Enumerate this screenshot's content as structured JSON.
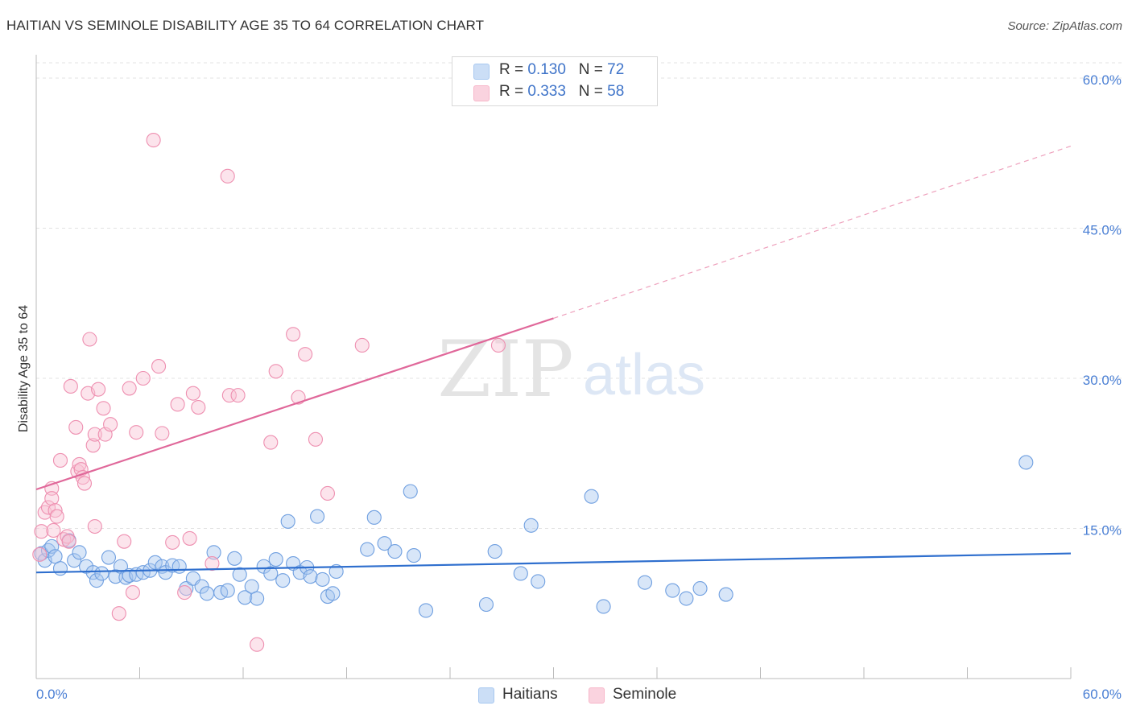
{
  "title": "HAITIAN VS SEMINOLE DISABILITY AGE 35 TO 64 CORRELATION CHART",
  "source": "Source: ZipAtlas.com",
  "watermark": {
    "zip": "ZIP",
    "atlas": "atlas"
  },
  "legend_top": [
    {
      "r_label": "R =",
      "r_value": "0.130",
      "n_label": "N =",
      "n_value": "72",
      "color": "#a8c8f0"
    },
    {
      "r_label": "R =",
      "r_value": "0.333",
      "n_label": "N =",
      "n_value": "58",
      "color": "#f7b6c9"
    }
  ],
  "legend_bottom": [
    {
      "label": "Haitians",
      "color": "#a8c8f0"
    },
    {
      "label": "Seminole",
      "color": "#f7b6c9"
    }
  ],
  "chart_data": {
    "type": "scatter",
    "ylabel": "Disability Age 35 to 64",
    "xlim": [
      0,
      60
    ],
    "ylim": [
      0,
      60
    ],
    "y_ticks": [
      "15.0%",
      "30.0%",
      "45.0%",
      "60.0%"
    ],
    "y_tick_values": [
      15,
      30,
      45,
      60
    ],
    "x_tick_labels": [
      "0.0%",
      "60.0%"
    ],
    "grid": true,
    "colors": {
      "haitians": "#6f9fe0",
      "seminole": "#ee8fb0",
      "haitians_line": "#2f6fce",
      "seminole_line": "#e0689a"
    },
    "series": [
      {
        "name": "Haitians",
        "trend": {
          "x0": 0,
          "y0": 10.6,
          "x1": 60,
          "y1": 12.5
        },
        "points": [
          [
            0.3,
            12.5
          ],
          [
            0.5,
            11.8
          ],
          [
            0.7,
            12.8
          ],
          [
            0.9,
            13.2
          ],
          [
            1.1,
            12.2
          ],
          [
            1.4,
            11.0
          ],
          [
            1.9,
            13.8
          ],
          [
            2.2,
            11.8
          ],
          [
            2.5,
            12.6
          ],
          [
            2.9,
            11.2
          ],
          [
            3.3,
            10.6
          ],
          [
            3.5,
            9.8
          ],
          [
            3.8,
            10.5
          ],
          [
            4.2,
            12.1
          ],
          [
            4.6,
            10.2
          ],
          [
            4.9,
            11.2
          ],
          [
            5.2,
            10.1
          ],
          [
            5.4,
            10.3
          ],
          [
            5.8,
            10.4
          ],
          [
            6.2,
            10.6
          ],
          [
            6.6,
            10.8
          ],
          [
            6.9,
            11.6
          ],
          [
            7.3,
            11.2
          ],
          [
            7.5,
            10.6
          ],
          [
            7.9,
            11.3
          ],
          [
            8.3,
            11.2
          ],
          [
            8.7,
            9.0
          ],
          [
            9.1,
            10.0
          ],
          [
            9.6,
            9.2
          ],
          [
            9.9,
            8.5
          ],
          [
            10.3,
            12.6
          ],
          [
            10.7,
            8.6
          ],
          [
            11.1,
            8.8
          ],
          [
            11.5,
            12.0
          ],
          [
            11.8,
            10.4
          ],
          [
            12.1,
            8.1
          ],
          [
            12.5,
            9.2
          ],
          [
            12.8,
            8.0
          ],
          [
            13.2,
            11.2
          ],
          [
            13.6,
            10.5
          ],
          [
            13.9,
            11.9
          ],
          [
            14.3,
            9.8
          ],
          [
            14.6,
            15.7
          ],
          [
            14.9,
            11.5
          ],
          [
            15.3,
            10.6
          ],
          [
            15.7,
            11.1
          ],
          [
            15.9,
            10.2
          ],
          [
            16.3,
            16.2
          ],
          [
            16.6,
            9.9
          ],
          [
            16.9,
            8.2
          ],
          [
            17.2,
            8.5
          ],
          [
            17.4,
            10.7
          ],
          [
            19.2,
            12.9
          ],
          [
            19.6,
            16.1
          ],
          [
            20.2,
            13.5
          ],
          [
            20.8,
            12.7
          ],
          [
            21.7,
            18.7
          ],
          [
            21.9,
            12.3
          ],
          [
            22.6,
            6.8
          ],
          [
            26.1,
            7.4
          ],
          [
            26.6,
            12.7
          ],
          [
            28.1,
            10.5
          ],
          [
            28.7,
            15.3
          ],
          [
            29.1,
            9.7
          ],
          [
            32.2,
            18.2
          ],
          [
            32.9,
            7.2
          ],
          [
            35.3,
            9.6
          ],
          [
            36.9,
            8.8
          ],
          [
            37.7,
            8.0
          ],
          [
            38.5,
            9.0
          ],
          [
            40.0,
            8.4
          ],
          [
            57.4,
            21.6
          ]
        ]
      },
      {
        "name": "Seminole",
        "trend": {
          "x0": 0,
          "y0": 18.9,
          "x1": 30,
          "y1": 36.0
        },
        "trend_dashed": {
          "x0": 30,
          "y0": 36.0,
          "x1": 60,
          "y1": 53.2
        },
        "points": [
          [
            0.2,
            12.4
          ],
          [
            0.3,
            14.7
          ],
          [
            0.5,
            16.6
          ],
          [
            0.7,
            17.1
          ],
          [
            0.9,
            19.0
          ],
          [
            0.9,
            18.0
          ],
          [
            1.0,
            14.8
          ],
          [
            1.1,
            16.8
          ],
          [
            1.2,
            16.2
          ],
          [
            1.4,
            21.8
          ],
          [
            1.6,
            13.9
          ],
          [
            1.8,
            14.2
          ],
          [
            1.9,
            13.7
          ],
          [
            2.0,
            29.2
          ],
          [
            2.3,
            25.1
          ],
          [
            2.4,
            20.7
          ],
          [
            2.5,
            21.4
          ],
          [
            2.6,
            20.9
          ],
          [
            2.7,
            20.1
          ],
          [
            2.8,
            19.5
          ],
          [
            3.0,
            28.5
          ],
          [
            3.1,
            33.9
          ],
          [
            3.3,
            23.3
          ],
          [
            3.4,
            24.4
          ],
          [
            3.4,
            15.2
          ],
          [
            3.6,
            28.9
          ],
          [
            3.9,
            27.0
          ],
          [
            4.0,
            24.4
          ],
          [
            4.3,
            25.4
          ],
          [
            4.8,
            6.5
          ],
          [
            5.1,
            13.7
          ],
          [
            5.4,
            29.0
          ],
          [
            5.6,
            8.6
          ],
          [
            5.8,
            24.6
          ],
          [
            6.2,
            30.0
          ],
          [
            6.8,
            53.8
          ],
          [
            7.1,
            31.2
          ],
          [
            7.3,
            24.5
          ],
          [
            7.9,
            13.6
          ],
          [
            8.2,
            27.4
          ],
          [
            8.6,
            8.6
          ],
          [
            8.9,
            14.0
          ],
          [
            9.1,
            28.5
          ],
          [
            9.4,
            27.1
          ],
          [
            10.2,
            11.5
          ],
          [
            11.1,
            50.2
          ],
          [
            11.2,
            28.3
          ],
          [
            11.7,
            28.3
          ],
          [
            12.8,
            3.4
          ],
          [
            13.6,
            23.6
          ],
          [
            13.9,
            30.7
          ],
          [
            14.9,
            34.4
          ],
          [
            15.2,
            28.1
          ],
          [
            15.6,
            32.4
          ],
          [
            16.2,
            23.9
          ],
          [
            16.9,
            18.5
          ],
          [
            18.9,
            33.3
          ],
          [
            26.8,
            33.3
          ]
        ]
      }
    ]
  }
}
